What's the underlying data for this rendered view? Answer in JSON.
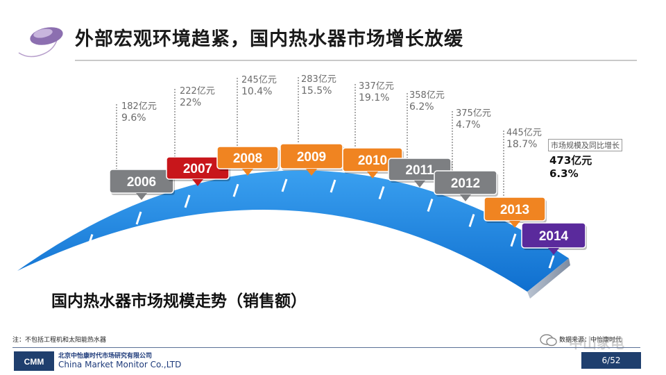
{
  "title": "外部宏观环境趋紧，国内热水器市场增长放缓",
  "subtitle": "国内热水器市场规模走势（销售额）",
  "legend_label": "市场规模及同比增长",
  "note": "注：不包括工程机和太阳能热水器",
  "source": "数据来源：中怡康时代",
  "watermark": "中山家电",
  "company_cn": "北京中怡康时代市场研究有限公司",
  "company_en": "China Market Monitor Co.,LTD",
  "company_logo_text": "CMM",
  "page": "6/52",
  "colors": {
    "gray": "#7d7f82",
    "red": "#c8161b",
    "orange": "#f08421",
    "purple": "#5a2a9c",
    "arc": "#1f86e0",
    "footer": "#1f3f6e"
  },
  "chart_data": {
    "type": "timeline",
    "value_unit": "亿元",
    "years": [
      "2006",
      "2007",
      "2008",
      "2009",
      "2010",
      "2011",
      "2012",
      "2013",
      "2014"
    ],
    "values": [
      "182亿元",
      "222亿元",
      "245亿元",
      "283亿元",
      "337亿元",
      "358亿元",
      "375亿元",
      "445亿元",
      "473亿元"
    ],
    "growth": [
      "9.6%",
      "22%",
      "10.4%",
      "15.5%",
      "19.1%",
      "6.2%",
      "4.7%",
      "18.7%",
      "6.3%"
    ],
    "label_colors": [
      "gray",
      "red",
      "orange",
      "orange",
      "orange",
      "gray",
      "gray",
      "orange",
      "purple"
    ]
  }
}
